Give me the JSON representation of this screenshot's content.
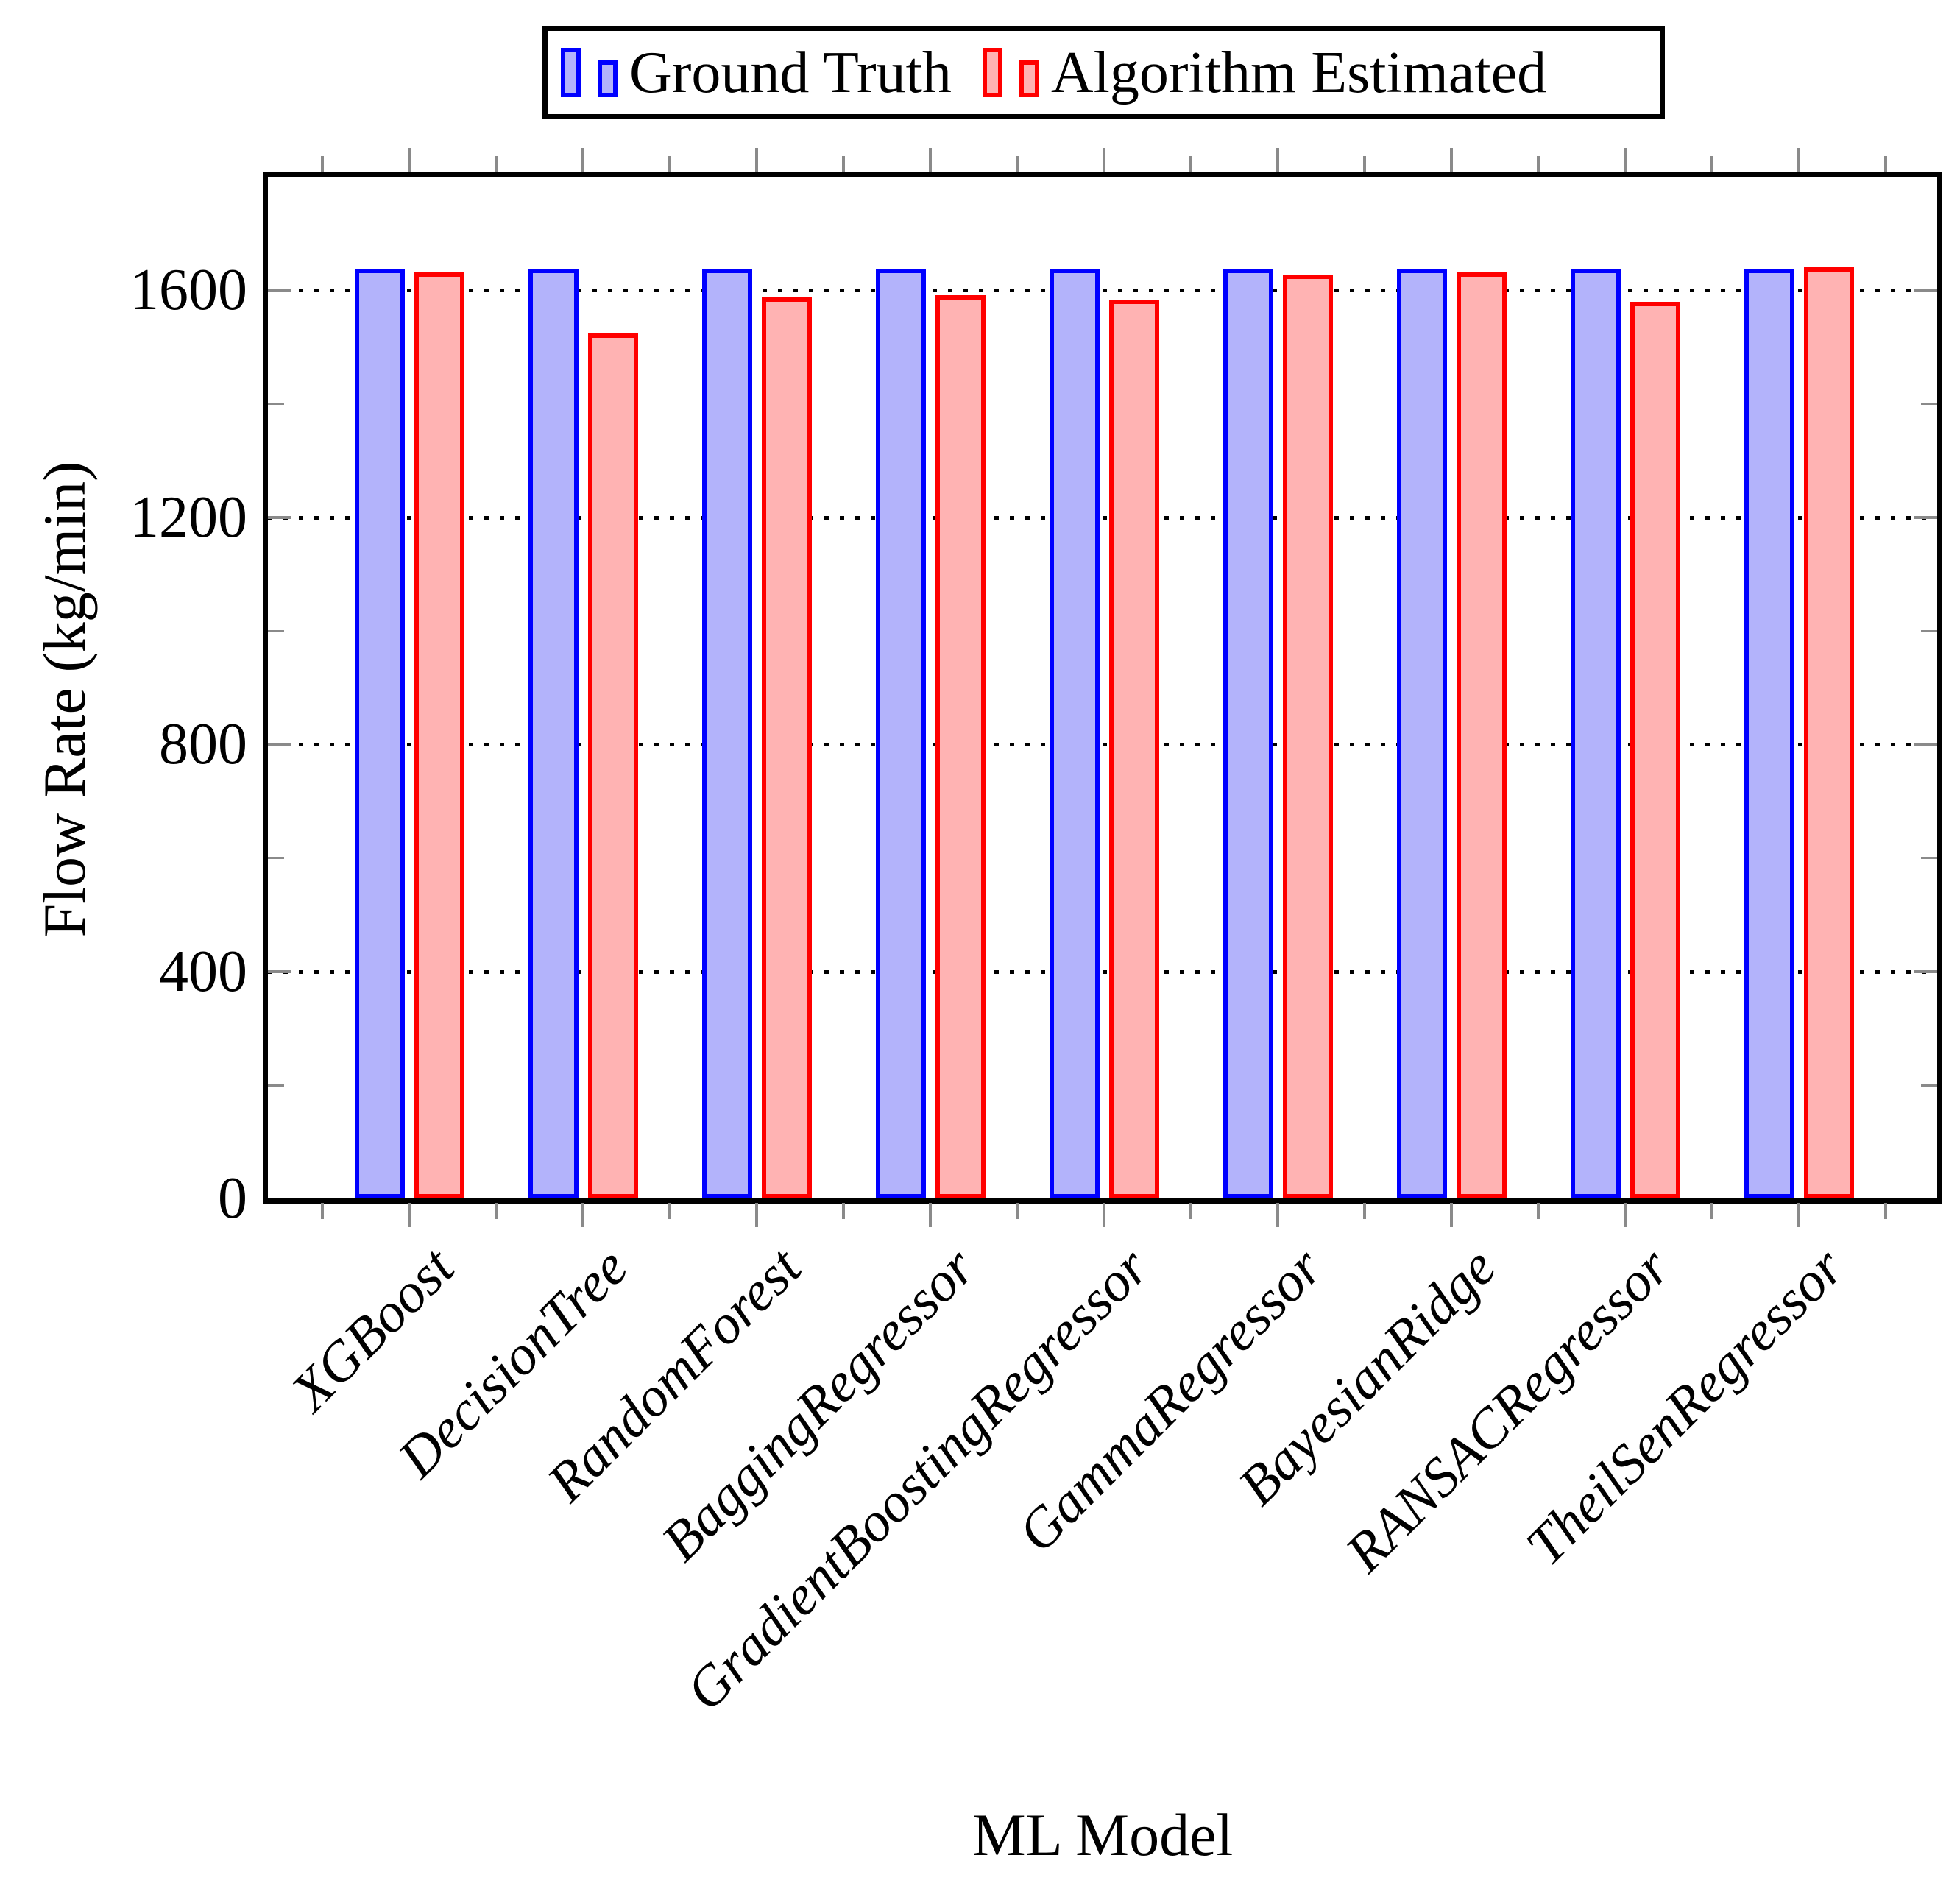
{
  "legend": {
    "items": [
      {
        "label": "Ground Truth",
        "border": "#0000ff",
        "fill": "#b3b3fb"
      },
      {
        "label": "Algorithm Estimated",
        "border": "#ff0000",
        "fill": "#ffb3b3"
      }
    ]
  },
  "chart_data": {
    "type": "bar",
    "title": "",
    "categories": [
      "XGBoost",
      "DecisionTree",
      "RandomForest",
      "BaggingRegressor",
      "GradientBoostingRegressor",
      "GammaRegressor",
      "BayesianRidge",
      "RANSACRegressor",
      "TheilSenRegressor"
    ],
    "series": [
      {
        "name": "Ground Truth",
        "color": "#0000ff",
        "fill": "#b3b3fb",
        "values": [
          1638,
          1638,
          1638,
          1638,
          1638,
          1638,
          1638,
          1638,
          1638
        ]
      },
      {
        "name": "Algorithm Estimated",
        "color": "#ff0000",
        "fill": "#ffb3b3",
        "values": [
          1631,
          1524,
          1587,
          1591,
          1583,
          1628,
          1632,
          1580,
          1641
        ]
      }
    ],
    "xlabel": "ML Model",
    "ylabel": "Flow Rate (kg/min)",
    "ylim": [
      0,
      1800
    ],
    "yticks": [
      0,
      400,
      800,
      1200,
      1600
    ],
    "y_minor_ticks": [
      200,
      600,
      1000,
      1400
    ],
    "grid": "horizontal-dotted-at-major-ticks",
    "legend_position": "top-outside-center",
    "bar_border_colors": {
      "ground_truth": "#0000ff",
      "estimated": "#ff0000"
    },
    "axis_color": "#000000",
    "tick_color": "#8a8a8a"
  }
}
